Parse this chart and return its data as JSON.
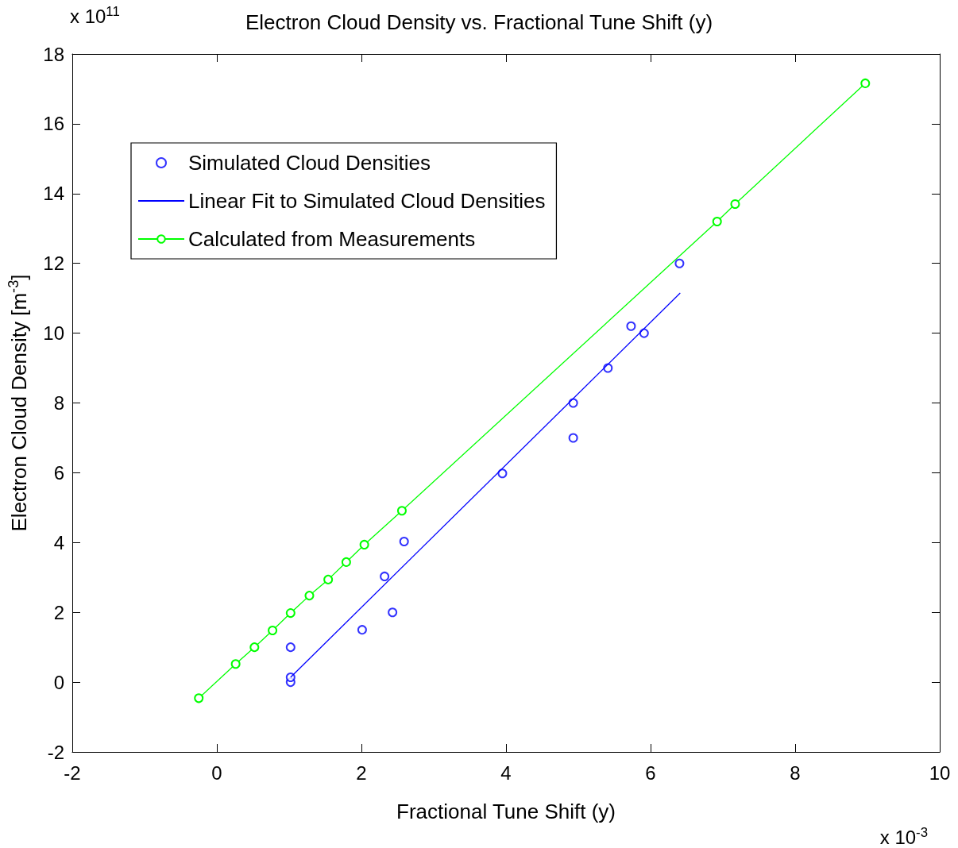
{
  "chart_data": {
    "type": "scatter",
    "title": "Electron Cloud Density vs. Fractional Tune Shift (y)",
    "xlabel": "Fractional Tune Shift (y)",
    "ylabel": "Electron Cloud Density [m$^{-3}$]",
    "annotations": [
      "x 10$^{11}$",
      "x 10$^{-3}$"
    ],
    "xlim": [
      -2,
      10
    ],
    "xticks": [
      -2,
      0,
      2,
      4,
      6,
      8,
      10
    ],
    "ylim": [
      -2,
      18
    ],
    "yticks": [
      -2,
      0,
      2,
      4,
      6,
      8,
      10,
      12,
      14,
      16,
      18
    ],
    "grid": false,
    "legend": "top left",
    "series": [
      {
        "name": "Simulated Cloud Densities",
        "marker": "circle",
        "color": "#0000ff",
        "x": [
          1.02,
          1.02,
          1.02,
          2.01,
          2.32,
          2.43,
          2.59,
          3.95,
          4.93,
          4.93,
          5.41,
          5.73,
          5.91,
          6.4
        ],
        "values": [
          0,
          0.14,
          1.0,
          1.5,
          3.03,
          2.0,
          4.03,
          5.98,
          7.0,
          8.0,
          9.0,
          10.2,
          10.0,
          12.0
        ]
      },
      {
        "name": "Linear Fit to Simulated Cloud Densities",
        "type": "line",
        "marker": "none",
        "color": "#0000ff",
        "x": [
          1.02,
          6.41
        ],
        "values": [
          0.14,
          11.15
        ]
      },
      {
        "name": "Calculated from Measurements",
        "type": "line",
        "marker": "circle",
        "color": "#00ff00",
        "x": [
          -0.25,
          0.26,
          0.52,
          0.77,
          1.02,
          1.28,
          1.54,
          1.79,
          2.04,
          2.56,
          6.92,
          7.17,
          8.97
        ],
        "values": [
          -0.46,
          0.52,
          1.0,
          1.48,
          1.98,
          2.48,
          2.94,
          3.44,
          3.94,
          4.91,
          13.2,
          13.7,
          17.16
        ]
      }
    ]
  }
}
